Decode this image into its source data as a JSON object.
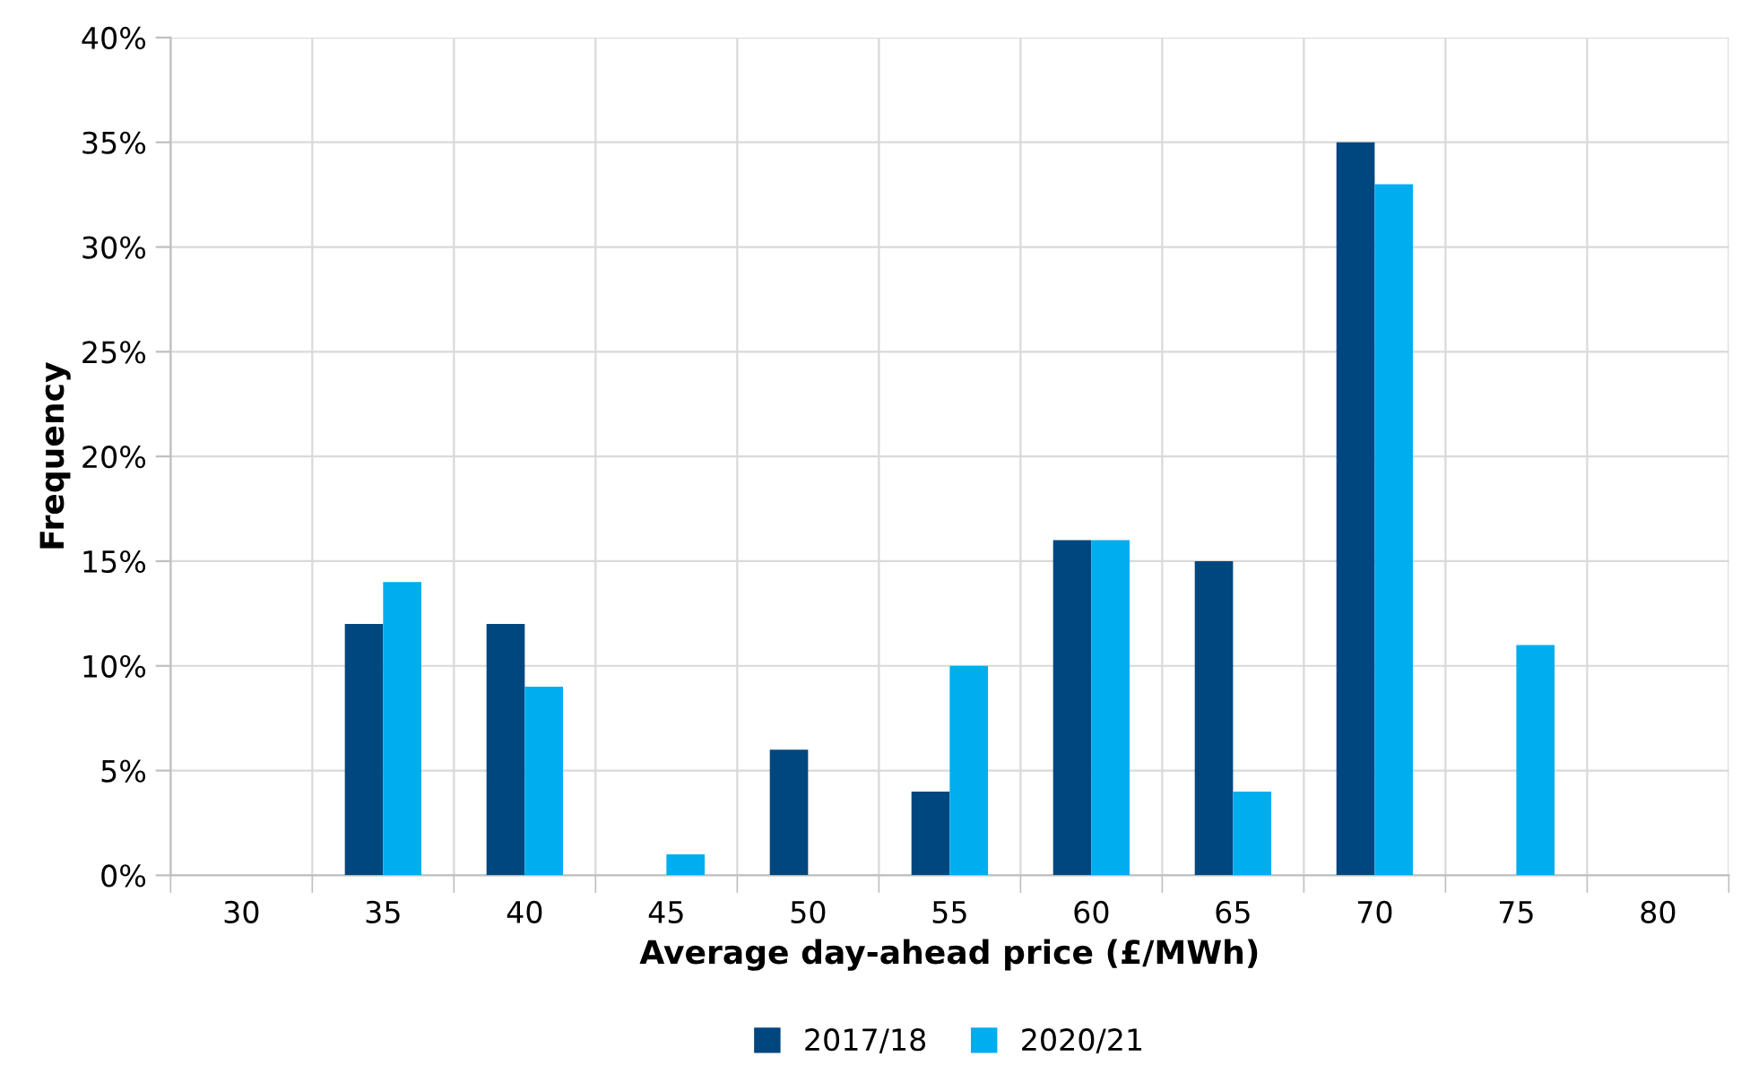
{
  "chart_data": {
    "type": "bar",
    "xlabel": "Average day-ahead price (£/MWh)",
    "ylabel": "Frequency",
    "categories": [
      "30",
      "35",
      "40",
      "45",
      "50",
      "55",
      "60",
      "65",
      "70",
      "75",
      "80"
    ],
    "series": [
      {
        "name": "2017/18",
        "color": "#00467f",
        "values": [
          0,
          12,
          12,
          0,
          6,
          4,
          16,
          15,
          35,
          0,
          0
        ]
      },
      {
        "name": "2020/21",
        "color": "#00adef",
        "values": [
          0,
          14,
          9,
          1,
          0,
          10,
          16,
          4,
          33,
          11,
          0
        ]
      }
    ],
    "ylim": [
      0,
      40
    ],
    "yticks": [
      {
        "value": 0,
        "label": "0%"
      },
      {
        "value": 5,
        "label": "5%"
      },
      {
        "value": 10,
        "label": "10%"
      },
      {
        "value": 15,
        "label": "15%"
      },
      {
        "value": 20,
        "label": "20%"
      },
      {
        "value": 25,
        "label": "25%"
      },
      {
        "value": 30,
        "label": "30%"
      },
      {
        "value": 35,
        "label": "35%"
      },
      {
        "value": 40,
        "label": "40%"
      }
    ],
    "grid": true,
    "legend": "bottom"
  }
}
